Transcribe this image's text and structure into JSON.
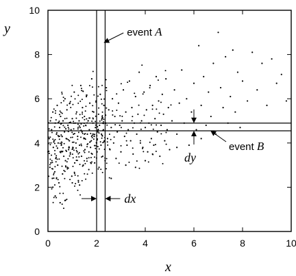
{
  "chart_data": {
    "type": "scatter",
    "title": "",
    "xlabel": "x",
    "ylabel": "y",
    "xlim": [
      0,
      10
    ],
    "ylim": [
      0,
      10
    ],
    "x_ticks": [
      "0",
      "2",
      "4",
      "6",
      "8",
      "10"
    ],
    "y_ticks": [
      "0",
      "2",
      "4",
      "6",
      "8",
      "10"
    ],
    "grid": false,
    "events": {
      "A": {
        "label_prefix": "event ",
        "label_var": "A",
        "x_range": [
          2.0,
          2.35
        ]
      },
      "B": {
        "label_prefix": "event ",
        "label_var": "B",
        "y_range": [
          4.55,
          4.9
        ]
      }
    },
    "diff_labels": {
      "dx": "dx",
      "dy": "dy"
    },
    "scatter_points": [
      [
        0.0,
        3.6
      ],
      [
        0.05,
        4.2
      ],
      [
        0.08,
        2.9
      ],
      [
        0.1,
        5.0
      ],
      [
        0.12,
        3.1
      ],
      [
        0.15,
        4.6
      ],
      [
        0.18,
        2.4
      ],
      [
        0.2,
        5.4
      ],
      [
        0.22,
        3.8
      ],
      [
        0.25,
        4.1
      ],
      [
        0.28,
        2.7
      ],
      [
        0.3,
        4.9
      ],
      [
        0.32,
        3.3
      ],
      [
        0.35,
        4.4
      ],
      [
        0.38,
        5.7
      ],
      [
        0.4,
        3.0
      ],
      [
        0.42,
        4.0
      ],
      [
        0.45,
        2.2
      ],
      [
        0.48,
        4.7
      ],
      [
        0.5,
        3.6
      ],
      [
        0.52,
        5.2
      ],
      [
        0.55,
        3.9
      ],
      [
        0.58,
        4.3
      ],
      [
        0.6,
        2.6
      ],
      [
        0.62,
        5.0
      ],
      [
        0.65,
        3.4
      ],
      [
        0.68,
        4.5
      ],
      [
        0.7,
        6.0
      ],
      [
        0.72,
        3.2
      ],
      [
        0.75,
        4.2
      ],
      [
        0.78,
        5.5
      ],
      [
        0.8,
        2.9
      ],
      [
        0.82,
        4.8
      ],
      [
        0.85,
        3.7
      ],
      [
        0.88,
        4.1
      ],
      [
        0.9,
        5.8
      ],
      [
        0.92,
        3.5
      ],
      [
        0.95,
        4.6
      ],
      [
        0.98,
        2.5
      ],
      [
        1.0,
        5.1
      ],
      [
        1.02,
        3.8
      ],
      [
        1.05,
        4.4
      ],
      [
        1.08,
        6.3
      ],
      [
        1.1,
        3.1
      ],
      [
        1.12,
        4.9
      ],
      [
        1.15,
        4.0
      ],
      [
        1.18,
        5.4
      ],
      [
        1.2,
        3.6
      ],
      [
        1.22,
        4.3
      ],
      [
        1.25,
        2.3
      ],
      [
        1.28,
        5.0
      ],
      [
        1.3,
        3.9
      ],
      [
        1.32,
        4.7
      ],
      [
        1.35,
        6.6
      ],
      [
        1.38,
        3.4
      ],
      [
        1.4,
        4.5
      ],
      [
        1.42,
        5.6
      ],
      [
        1.45,
        3.0
      ],
      [
        1.48,
        4.2
      ],
      [
        1.5,
        5.2
      ],
      [
        1.52,
        3.7
      ],
      [
        1.55,
        4.8
      ],
      [
        1.58,
        6.1
      ],
      [
        1.6,
        3.3
      ],
      [
        1.62,
        4.4
      ],
      [
        1.65,
        5.0
      ],
      [
        1.68,
        2.8
      ],
      [
        1.7,
        4.6
      ],
      [
        1.72,
        5.8
      ],
      [
        1.75,
        3.8
      ],
      [
        1.78,
        4.1
      ],
      [
        1.8,
        6.9
      ],
      [
        1.82,
        3.5
      ],
      [
        1.85,
        4.9
      ],
      [
        1.88,
        5.4
      ],
      [
        1.9,
        4.3
      ],
      [
        1.92,
        3.1
      ],
      [
        1.95,
        4.7
      ],
      [
        1.98,
        5.9
      ],
      [
        2.0,
        4.0
      ],
      [
        2.02,
        3.6
      ],
      [
        2.05,
        4.5
      ],
      [
        2.08,
        5.3
      ],
      [
        2.1,
        2.9
      ],
      [
        2.12,
        4.8
      ],
      [
        2.15,
        6.2
      ],
      [
        2.18,
        3.9
      ],
      [
        2.2,
        4.4
      ],
      [
        2.22,
        5.1
      ],
      [
        2.25,
        3.4
      ],
      [
        2.28,
        4.6
      ],
      [
        2.3,
        5.7
      ],
      [
        2.32,
        4.1
      ],
      [
        2.35,
        3.2
      ],
      [
        2.38,
        4.9
      ],
      [
        2.4,
        6.5
      ],
      [
        2.45,
        4.2
      ],
      [
        2.5,
        5.5
      ],
      [
        2.55,
        3.7
      ],
      [
        2.6,
        4.7
      ],
      [
        2.65,
        6.0
      ],
      [
        2.7,
        4.0
      ],
      [
        2.75,
        5.2
      ],
      [
        2.8,
        3.3
      ],
      [
        2.85,
        4.5
      ],
      [
        2.9,
        5.8
      ],
      [
        2.95,
        4.8
      ],
      [
        3.0,
        3.6
      ],
      [
        3.05,
        5.0
      ],
      [
        3.1,
        6.4
      ],
      [
        3.15,
        4.3
      ],
      [
        3.2,
        5.4
      ],
      [
        3.25,
        3.9
      ],
      [
        3.3,
        4.6
      ],
      [
        3.35,
        6.8
      ],
      [
        3.4,
        4.1
      ],
      [
        3.45,
        5.6
      ],
      [
        3.5,
        3.5
      ],
      [
        3.55,
        4.9
      ],
      [
        3.6,
        6.1
      ],
      [
        3.65,
        4.4
      ],
      [
        3.7,
        5.3
      ],
      [
        3.75,
        7.2
      ],
      [
        3.8,
        4.0
      ],
      [
        3.85,
        5.0
      ],
      [
        3.9,
        3.8
      ],
      [
        3.95,
        6.3
      ],
      [
        4.0,
        4.7
      ],
      [
        4.05,
        5.5
      ],
      [
        4.1,
        3.6
      ],
      [
        4.15,
        4.9
      ],
      [
        4.2,
        6.6
      ],
      [
        4.25,
        4.2
      ],
      [
        4.3,
        5.7
      ],
      [
        4.35,
        3.9
      ],
      [
        4.4,
        5.1
      ],
      [
        4.45,
        7.0
      ],
      [
        4.5,
        4.5
      ],
      [
        4.55,
        5.9
      ],
      [
        4.6,
        3.4
      ],
      [
        4.65,
        4.8
      ],
      [
        4.7,
        6.2
      ],
      [
        4.75,
        5.3
      ],
      [
        4.8,
        4.1
      ],
      [
        4.85,
        6.9
      ],
      [
        4.9,
        4.6
      ],
      [
        4.95,
        5.6
      ],
      [
        5.0,
        3.7
      ],
      [
        5.1,
        5.0
      ],
      [
        5.2,
        6.4
      ],
      [
        5.3,
        4.4
      ],
      [
        5.4,
        5.8
      ],
      [
        5.5,
        7.3
      ],
      [
        5.6,
        4.9
      ],
      [
        5.7,
        6.0
      ],
      [
        5.8,
        3.9
      ],
      [
        5.9,
        5.4
      ],
      [
        6.0,
        6.7
      ],
      [
        6.1,
        4.6
      ],
      [
        6.2,
        8.4
      ],
      [
        6.3,
        5.7
      ],
      [
        6.4,
        7.0
      ],
      [
        6.5,
        4.8
      ],
      [
        6.6,
        6.3
      ],
      [
        6.7,
        5.2
      ],
      [
        6.8,
        7.6
      ],
      [
        6.9,
        4.4
      ],
      [
        7.0,
        9.0
      ],
      [
        7.1,
        6.5
      ],
      [
        7.2,
        5.6
      ],
      [
        7.3,
        7.9
      ],
      [
        7.4,
        4.9
      ],
      [
        7.5,
        6.1
      ],
      [
        7.6,
        8.2
      ],
      [
        7.7,
        5.4
      ],
      [
        7.8,
        7.2
      ],
      [
        7.9,
        4.7
      ],
      [
        8.0,
        6.8
      ],
      [
        8.2,
        5.9
      ],
      [
        8.4,
        8.1
      ],
      [
        8.6,
        6.4
      ],
      [
        8.8,
        7.6
      ],
      [
        9.0,
        5.7
      ],
      [
        9.2,
        7.8
      ],
      [
        9.4,
        6.7
      ],
      [
        9.6,
        7.1
      ],
      [
        9.8,
        5.9
      ],
      [
        0.3,
        1.6
      ],
      [
        0.5,
        1.3
      ],
      [
        0.7,
        1.4
      ],
      [
        1.3,
        2.1
      ],
      [
        0.2,
        2.0
      ],
      [
        1.0,
        2.2
      ],
      [
        2.6,
        2.4
      ],
      [
        3.2,
        3.0
      ],
      [
        3.6,
        2.9
      ],
      [
        4.3,
        3.5
      ],
      [
        4.0,
        3.2
      ],
      [
        5.3,
        3.8
      ],
      [
        6.3,
        4.2
      ]
    ]
  }
}
